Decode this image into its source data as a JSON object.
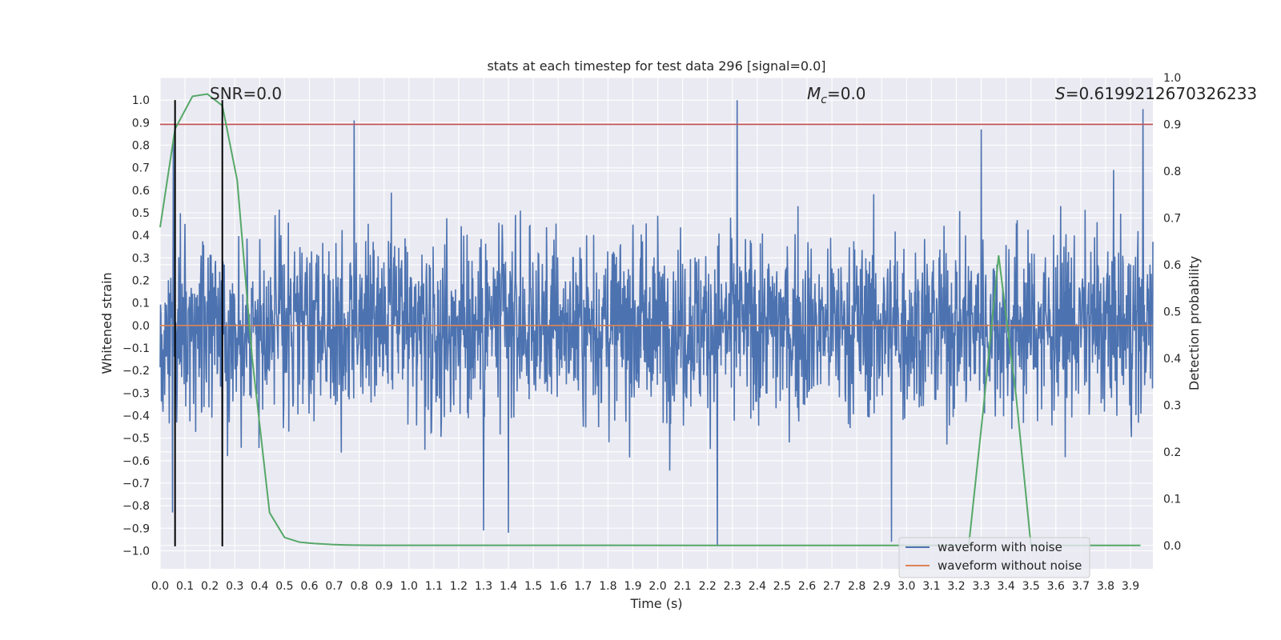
{
  "chart_data": {
    "type": "line",
    "title": "stats at each timestep for test data 296 [signal=0.0]",
    "xlabel": "Time (s)",
    "ylabel": "Whitened strain",
    "y2label": "Detection probability",
    "xlim": [
      0.0,
      3.99
    ],
    "ylim": [
      -1.08,
      1.1
    ],
    "y2lim": [
      -0.05,
      1.0
    ],
    "x_ticks": [
      "0.0",
      "0.1",
      "0.2",
      "0.3",
      "0.4",
      "0.5",
      "0.6",
      "0.7",
      "0.8",
      "0.9",
      "1.0",
      "1.1",
      "1.2",
      "1.3",
      "1.4",
      "1.5",
      "1.6",
      "1.7",
      "1.8",
      "1.9",
      "2.0",
      "2.1",
      "2.2",
      "2.3",
      "2.4",
      "2.5",
      "2.6",
      "2.7",
      "2.8",
      "2.9",
      "3.0",
      "3.1",
      "3.2",
      "3.3",
      "3.4",
      "3.5",
      "3.6",
      "3.7",
      "3.8",
      "3.9"
    ],
    "y_ticks": [
      "1.0",
      "0.9",
      "0.8",
      "0.7",
      "0.6",
      "0.5",
      "0.4",
      "0.3",
      "0.2",
      "0.1",
      "0.0",
      "−0.1",
      "−0.2",
      "−0.3",
      "−0.4",
      "−0.5",
      "−0.6",
      "−0.7",
      "−0.8",
      "−0.9",
      "−1.0"
    ],
    "y2_ticks": [
      "1.0",
      "0.9",
      "0.8",
      "0.7",
      "0.6",
      "0.5",
      "0.4",
      "0.3",
      "0.2",
      "0.1",
      "0.0"
    ],
    "annotations": {
      "snr": "SNR=0.0",
      "mc": "=0.0",
      "mc_symbol": "M",
      "mc_sub": "c",
      "s_symbol": "S",
      "s_value": "=0.6199212670326233"
    },
    "legend": {
      "position": "lower-right",
      "entries": [
        {
          "label": "waveform with noise",
          "color": "#4c72b0"
        },
        {
          "label": "waveform without noise",
          "color": "#dd8452"
        }
      ]
    },
    "series": [
      {
        "name": "waveform with noise",
        "color": "#4c72b0",
        "axis": "left",
        "kind": "noise",
        "amplitude_rms": 0.28,
        "min": -0.98,
        "max": 1.0,
        "spikes": [
          [
            0.05,
            -0.83
          ],
          [
            0.053,
            0.83
          ],
          [
            0.25,
            -0.79
          ],
          [
            0.78,
            0.91
          ],
          [
            1.3,
            -0.91
          ],
          [
            1.4,
            -0.92
          ],
          [
            2.24,
            -0.98
          ],
          [
            2.32,
            1.0
          ],
          [
            2.94,
            -0.96
          ],
          [
            3.3,
            0.87
          ],
          [
            3.95,
            0.96
          ]
        ]
      },
      {
        "name": "waveform without noise",
        "color": "#dd8452",
        "axis": "left",
        "x": [
          0.0,
          3.99
        ],
        "y": [
          0.0,
          0.0
        ]
      },
      {
        "name": "detection probability",
        "color": "#55a868",
        "axis": "right",
        "x": [
          0.0,
          0.06,
          0.13,
          0.19,
          0.25,
          0.31,
          0.37,
          0.44,
          0.5,
          0.56,
          0.62,
          0.69,
          0.75,
          0.81,
          0.88,
          1.0,
          3.0,
          3.25,
          3.31,
          3.37,
          3.44,
          3.5,
          3.56,
          3.62,
          3.94
        ],
        "y": [
          0.68,
          0.89,
          0.96,
          0.965,
          0.94,
          0.78,
          0.4,
          0.07,
          0.017,
          0.007,
          0.004,
          0.002,
          0.001,
          0.0005,
          0.0003,
          0.0002,
          0.0,
          0.0,
          0.3,
          0.62,
          0.32,
          0.0,
          0.0,
          0.0,
          0.0
        ]
      }
    ],
    "threshold": {
      "axis": "right",
      "y": 0.9,
      "color": "#c44e52"
    },
    "vlines": [
      {
        "x": 0.06,
        "y_from": -0.98,
        "y_to": 1.0,
        "color": "#000000"
      },
      {
        "x": 0.25,
        "y_from": -0.98,
        "y_to": 1.0,
        "color": "#000000"
      }
    ],
    "grid": true
  }
}
